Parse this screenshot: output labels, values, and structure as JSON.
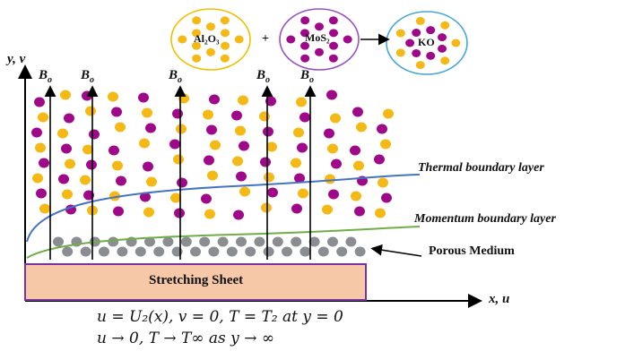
{
  "formula": {
    "ball1": {
      "text": "Al₂O₃",
      "color": "#f5b916",
      "border": "#f0c000"
    },
    "plus": "+",
    "ball2": {
      "text": "MoS₂",
      "color": "#a0088a",
      "border": "#9a4fc4"
    },
    "ball3": {
      "text": "KO",
      "border": "#46a6d6"
    }
  },
  "axes": {
    "y_label": "y, v",
    "x_label": "x, u"
  },
  "field_label": "Bo",
  "field_lines_count": 6,
  "labels": {
    "thermal": "Thermal boundary layer",
    "momentum": "Momentum boundary layer",
    "porous": "Porous Medium"
  },
  "sheet": {
    "label": "Stretching Sheet",
    "fill": "#f6c8a8",
    "border": "#7a34a2"
  },
  "equations": {
    "line1": "u = U₂(x), v = 0, T = T₂ at y = 0",
    "line2": "u → 0, T → T∞  as y → ∞"
  },
  "colors": {
    "yellow": "#f5b916",
    "purple": "#a0088a",
    "gray": "#8a8d91",
    "thermal_curve": "#4472c4",
    "momentum_curve": "#70ad47"
  }
}
